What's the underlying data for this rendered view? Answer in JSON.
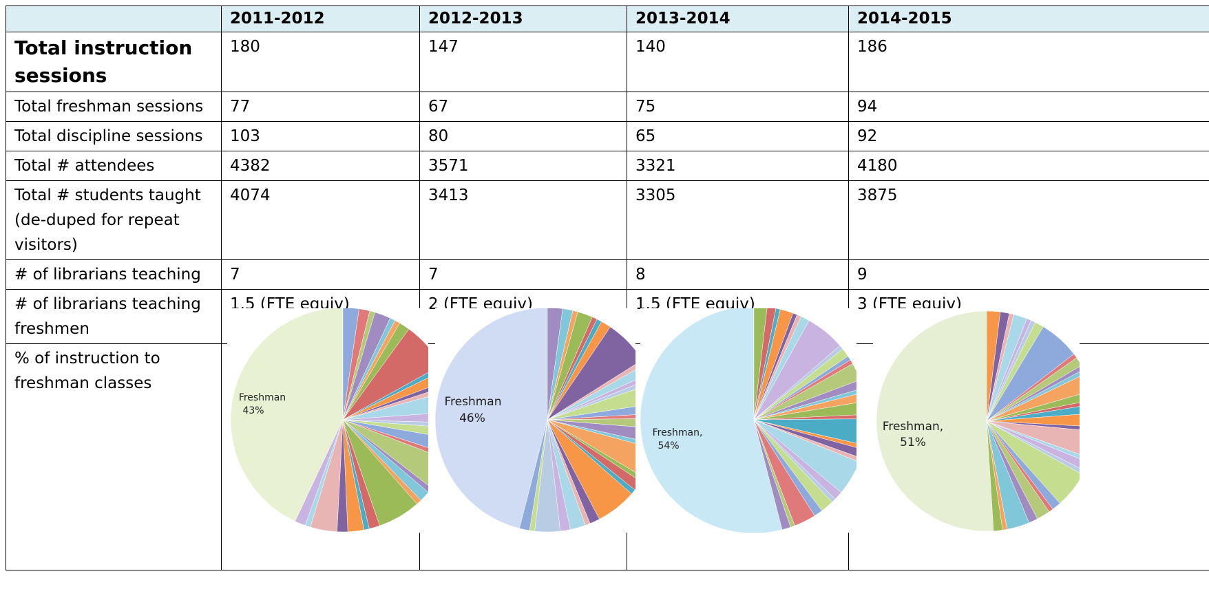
{
  "table": {
    "columns": [
      "2011-2012",
      "2012-2013",
      "2013-2014",
      "2014-2015"
    ],
    "rows": [
      {
        "label": "Total instruction sessions",
        "cells": [
          "180",
          "147",
          "140",
          "186"
        ]
      },
      {
        "label": "Total freshman sessions",
        "cells": [
          "77",
          "67",
          "75",
          "94"
        ]
      },
      {
        "label": "Total discipline sessions",
        "cells": [
          "103",
          "80",
          "65",
          "92"
        ]
      },
      {
        "label": "Total # attendees",
        "cells": [
          "4382",
          "3571",
          "3321",
          "4180"
        ]
      },
      {
        "label": "Total # students taught (de-duped for repeat visitors)",
        "cells": [
          "4074",
          "3413",
          "3305",
          "3875"
        ]
      },
      {
        "label": "# of librarians teaching",
        "cells": [
          "7",
          "7",
          "8",
          "9"
        ]
      },
      {
        "label": "# of librarians teaching freshmen",
        "cells": [
          "1.5 (FTE equiv)",
          "2 (FTE equiv)",
          "1.5 (FTE equiv)",
          "3 (FTE equiv)"
        ]
      }
    ]
  },
  "pies": {
    "row_label": "% of instruction to freshman classes",
    "charts": [
      {
        "label": [
          "Freshman",
          "43%"
        ],
        "value": 43,
        "color": "#e8f2d3"
      },
      {
        "label": [
          "Freshman",
          "46%"
        ],
        "value": 46,
        "color": "#cfdcf3"
      },
      {
        "label": [
          "Freshman,",
          "54%"
        ],
        "value": 54,
        "color": "#c9e8f5"
      },
      {
        "label": [
          "Freshman,",
          "51%"
        ],
        "value": 51,
        "color": "#e6efd3"
      }
    ]
  }
}
